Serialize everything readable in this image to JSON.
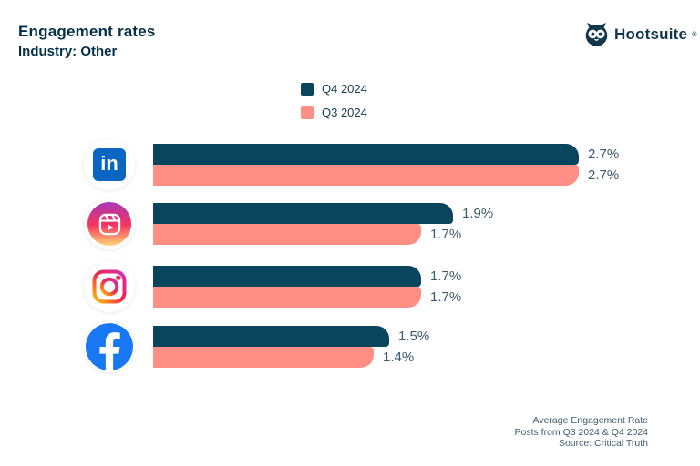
{
  "header": {
    "title": "Engagement rates",
    "subtitle": "Industry: Other",
    "brand": "Hootsuite",
    "brand_mark": "®"
  },
  "legend": [
    {
      "label": "Q4 2024",
      "color": "#09455c"
    },
    {
      "label": "Q3 2024",
      "color": "#ff8f85"
    }
  ],
  "chart_data": {
    "type": "bar",
    "orientation": "horizontal",
    "title": "Engagement rates",
    "subtitle": "Industry: Other",
    "categories": [
      "LinkedIn",
      "Instagram Reels",
      "Instagram",
      "Facebook"
    ],
    "series": [
      {
        "name": "Q4 2024",
        "color": "#09455c",
        "values": [
          2.7,
          1.9,
          1.7,
          1.5
        ]
      },
      {
        "name": "Q3 2024",
        "color": "#ff8f85",
        "values": [
          2.7,
          1.7,
          1.7,
          1.4
        ]
      }
    ],
    "value_suffix": "%",
    "xlim": [
      0,
      2.7
    ],
    "grid": false,
    "legend_position": "top-center",
    "value_labels": "right-of-bar"
  },
  "icons": {
    "linkedin_glyph": "in"
  },
  "footer": {
    "lines": [
      "Average Engagement Rate",
      "Posts from Q3 2024 & Q4 2024",
      "Source: Critical Truth"
    ]
  },
  "colors": {
    "q4_bar": "#09455c",
    "q3_bar": "#ff8f85",
    "heading": "#05304a",
    "value_label": "#3a5a6c",
    "linkedin_blue": "#0a66c2",
    "facebook_blue": "#1877f2"
  }
}
